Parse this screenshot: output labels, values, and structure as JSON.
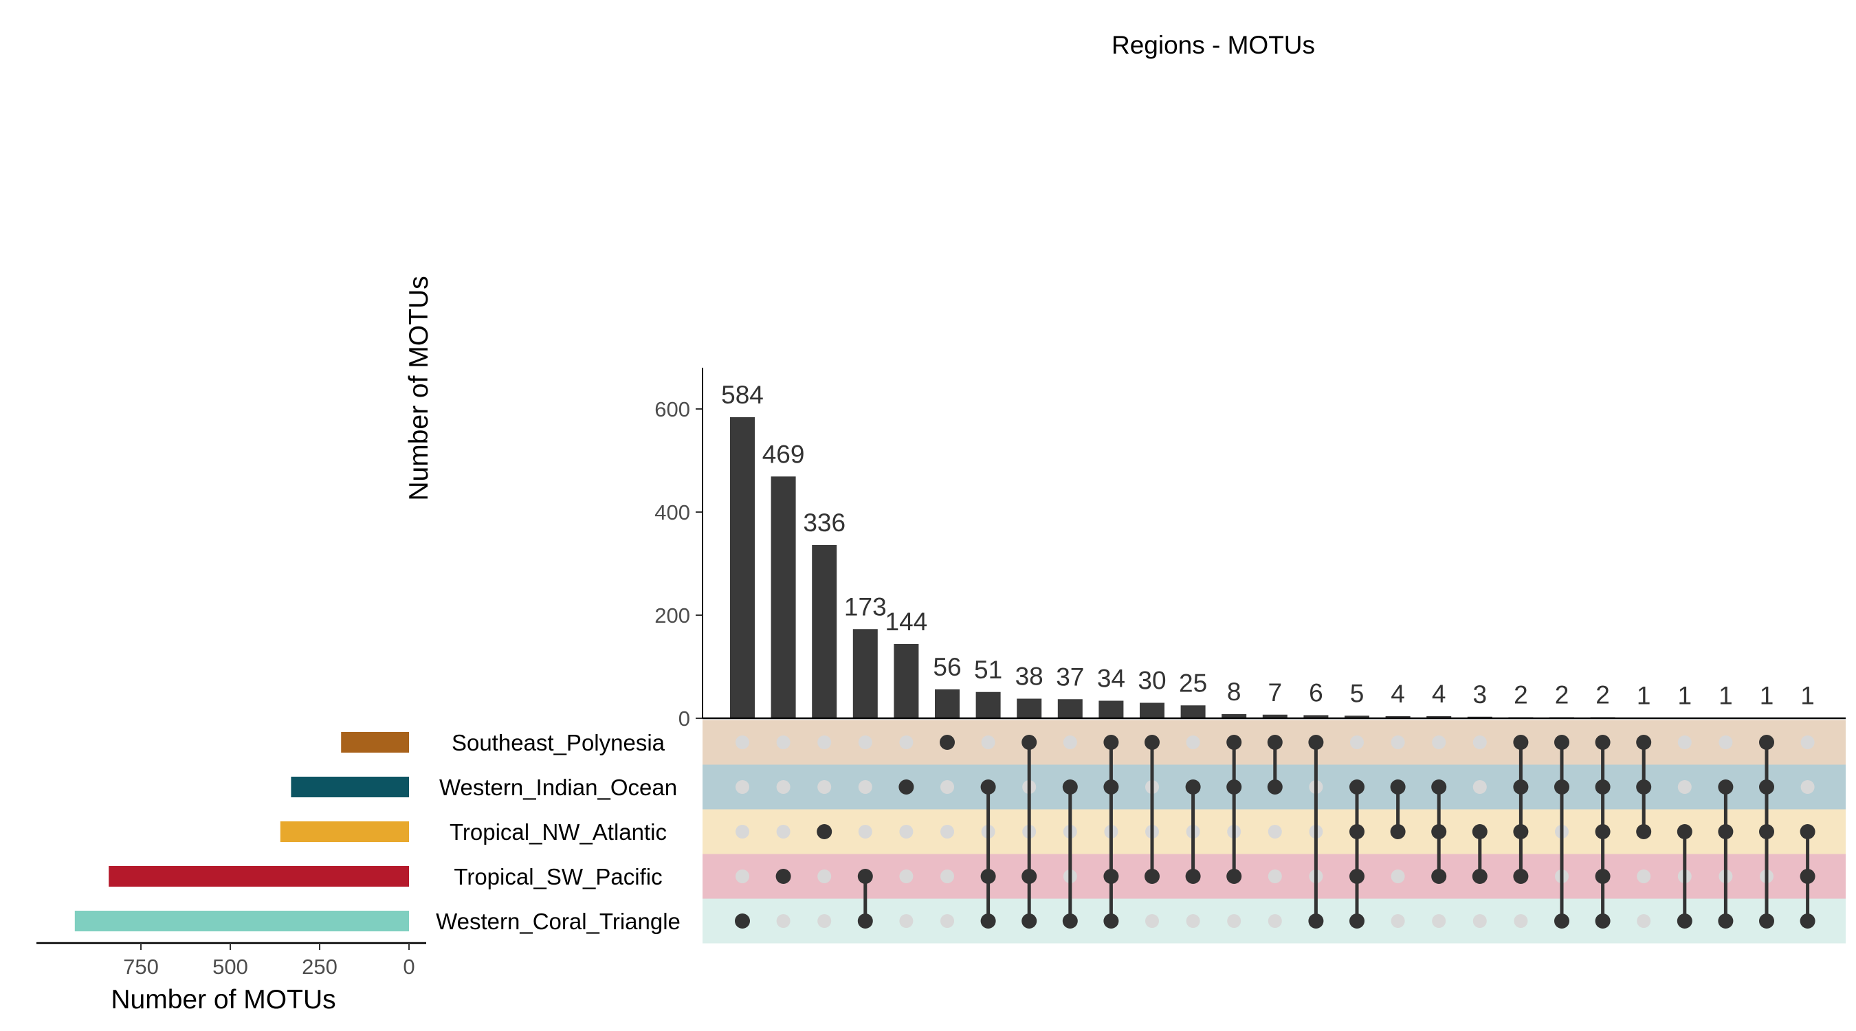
{
  "chart_data": {
    "type": "upset",
    "title": "Regions - MOTUs",
    "intersection_axis": {
      "ylabel": "Number of MOTUs",
      "ylim": [
        0,
        680
      ],
      "ticks": [
        0,
        200,
        400,
        600
      ]
    },
    "set_axis": {
      "xlabel": "Number of MOTUs",
      "xlim": [
        0,
        975
      ],
      "ticks": [
        0,
        250,
        500,
        750
      ],
      "reversed": true
    },
    "sets": [
      {
        "name": "Southeast_Polynesia",
        "size": 190,
        "color": "#a8621b",
        "band_color": "#e8d4c0"
      },
      {
        "name": "Western_Indian_Ocean",
        "size": 330,
        "color": "#0c5462",
        "band_color": "#b4cdd4"
      },
      {
        "name": "Tropical_NW_Atlantic",
        "size": 360,
        "color": "#e8a82c",
        "band_color": "#f7e6c2"
      },
      {
        "name": "Tropical_SW_Pacific",
        "size": 840,
        "color": "#b5192b",
        "band_color": "#ebbdc6"
      },
      {
        "name": "Western_Coral_Triangle",
        "size": 935,
        "color": "#7fcfc0",
        "band_color": "#dbefeb"
      }
    ],
    "intersections": [
      {
        "size": 584,
        "sets": [
          4
        ]
      },
      {
        "size": 469,
        "sets": [
          3
        ]
      },
      {
        "size": 336,
        "sets": [
          2
        ]
      },
      {
        "size": 173,
        "sets": [
          3,
          4
        ]
      },
      {
        "size": 144,
        "sets": [
          1
        ]
      },
      {
        "size": 56,
        "sets": [
          0
        ]
      },
      {
        "size": 51,
        "sets": [
          1,
          3,
          4
        ]
      },
      {
        "size": 38,
        "sets": [
          0,
          3,
          4
        ]
      },
      {
        "size": 37,
        "sets": [
          1,
          4
        ]
      },
      {
        "size": 34,
        "sets": [
          0,
          1,
          3,
          4
        ]
      },
      {
        "size": 30,
        "sets": [
          0,
          3
        ]
      },
      {
        "size": 25,
        "sets": [
          1,
          3
        ]
      },
      {
        "size": 8,
        "sets": [
          0,
          1,
          3
        ]
      },
      {
        "size": 7,
        "sets": [
          0,
          1
        ]
      },
      {
        "size": 6,
        "sets": [
          0,
          4
        ]
      },
      {
        "size": 5,
        "sets": [
          1,
          2,
          3,
          4
        ]
      },
      {
        "size": 4,
        "sets": [
          1,
          2
        ]
      },
      {
        "size": 4,
        "sets": [
          1,
          2,
          3
        ]
      },
      {
        "size": 3,
        "sets": [
          2,
          3
        ]
      },
      {
        "size": 2,
        "sets": [
          0,
          1,
          2,
          3
        ]
      },
      {
        "size": 2,
        "sets": [
          0,
          1,
          4
        ]
      },
      {
        "size": 2,
        "sets": [
          0,
          1,
          2,
          3,
          4
        ]
      },
      {
        "size": 1,
        "sets": [
          0,
          1,
          2
        ]
      },
      {
        "size": 1,
        "sets": [
          2,
          4
        ]
      },
      {
        "size": 1,
        "sets": [
          1,
          2,
          4
        ]
      },
      {
        "size": 1,
        "sets": [
          0,
          1,
          2,
          4
        ]
      },
      {
        "size": 1,
        "sets": [
          2,
          3,
          4
        ]
      }
    ],
    "colors": {
      "bar": "#3a3a3a",
      "dot_active": "#333333",
      "dot_inactive": "#d8d8d8"
    }
  }
}
